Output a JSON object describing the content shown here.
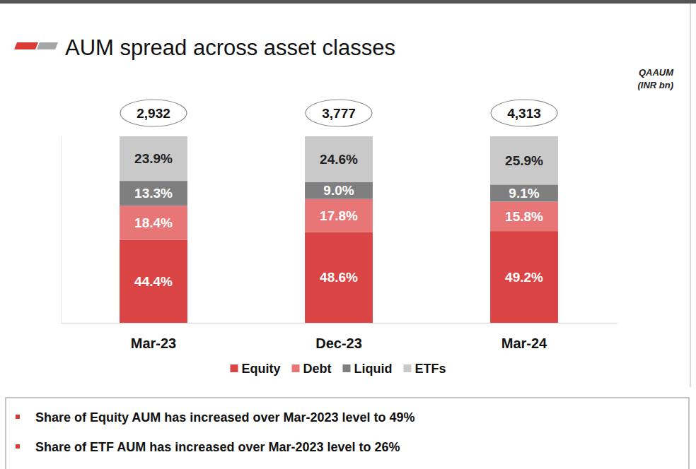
{
  "chart_data": {
    "type": "bar",
    "stacked": true,
    "data_labels": true,
    "tick_labels": "x",
    "grid": false,
    "legend": "bottom",
    "title": "AUM spread across asset classes",
    "subtitle": "QAAUM (INR bn)",
    "categories": [
      "Mar-23",
      "Dec-23",
      "Mar-24"
    ],
    "ylim": [
      0,
      100
    ],
    "series": [
      {
        "name": "Equity",
        "color": "#db4444",
        "values": [
          44.4,
          48.6,
          49.2
        ],
        "value_labels": [
          "44.4%",
          "48.6%",
          "49.2%"
        ]
      },
      {
        "name": "Debt",
        "color": "#e87676",
        "values": [
          18.4,
          17.8,
          15.8
        ],
        "value_labels": [
          "18.4%",
          "17.8%",
          "15.8%"
        ]
      },
      {
        "name": "Liquid",
        "color": "#7f7f7f",
        "values": [
          13.3,
          9.0,
          9.1
        ],
        "value_labels": [
          "13.3%",
          "9.0%",
          "9.1%"
        ]
      },
      {
        "name": "ETFs",
        "color": "#c9c9c9",
        "values": [
          23.9,
          24.6,
          25.9
        ],
        "value_labels": [
          "23.9%",
          "24.6%",
          "25.9%"
        ]
      }
    ],
    "totals": [
      2932,
      3777,
      4313
    ],
    "total_labels": [
      "2,932",
      "3,777",
      "4,313"
    ],
    "annotations": [
      "Share of Equity AUM has increased over Mar-2023 level to 49%",
      "Share of ETF AUM has increased over Mar-2023 level to 26%"
    ]
  }
}
